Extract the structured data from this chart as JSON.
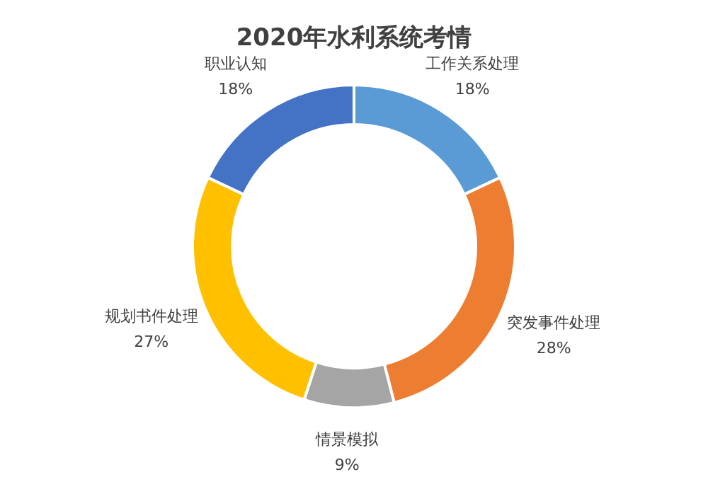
{
  "chart_data": {
    "type": "donut",
    "title": "2020年水利系统考情",
    "categories": [
      "工作关系处理",
      "突发事件处理",
      "情景模拟",
      "规划书件处理",
      "职业认知"
    ],
    "values": [
      18,
      28,
      9,
      27,
      18
    ],
    "colors": [
      "#5b9bd5",
      "#ed7d31",
      "#a5a5a5",
      "#ffc000",
      "#4472c4"
    ],
    "value_labels": [
      "18%",
      "28%",
      "9%",
      "27%",
      "18%"
    ]
  }
}
